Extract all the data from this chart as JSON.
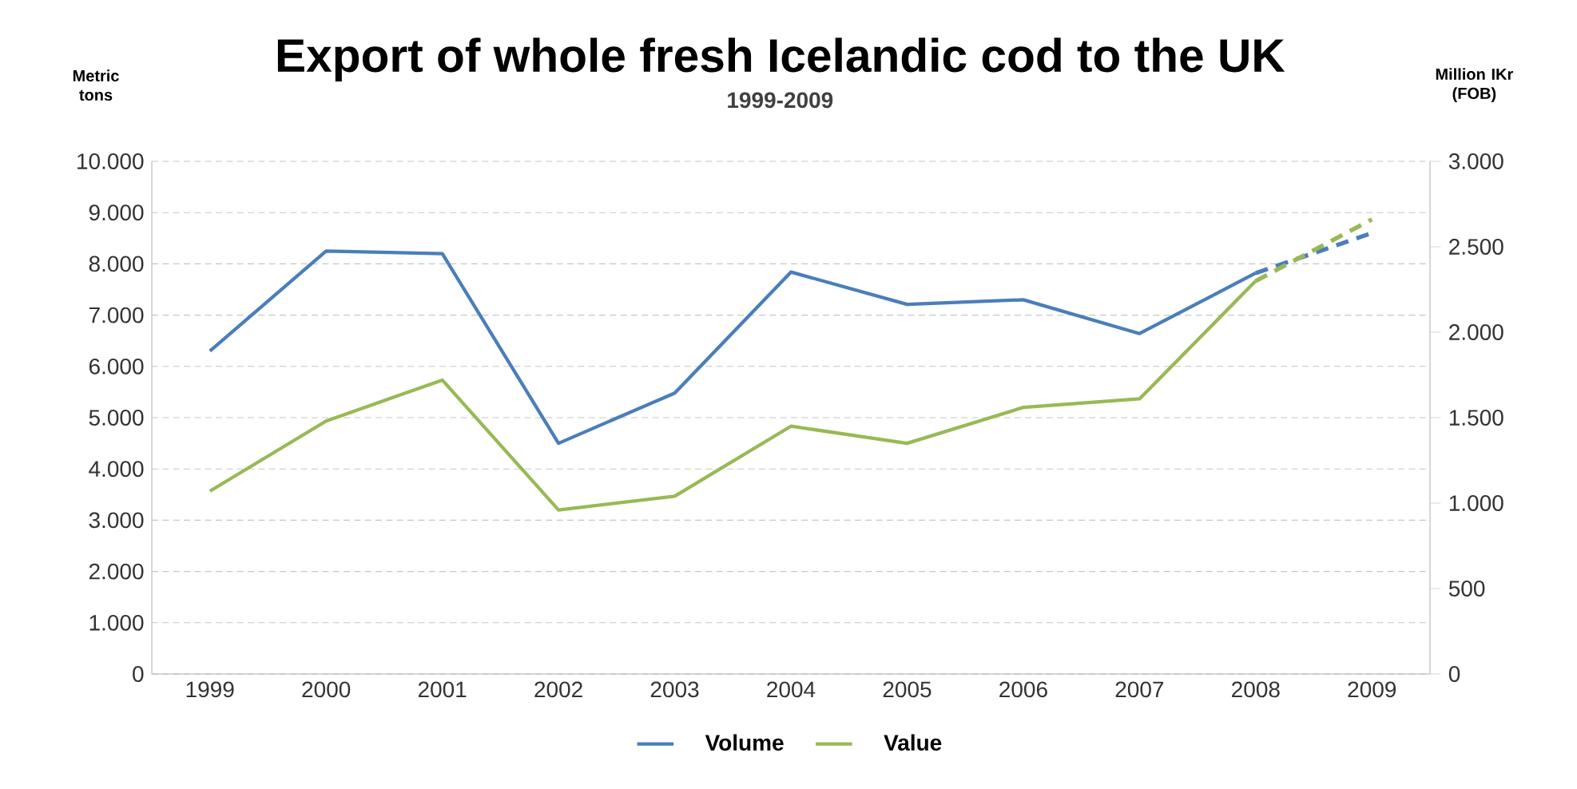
{
  "chart_data": {
    "type": "line",
    "title": "Export of whole fresh Icelandic cod to the UK",
    "subtitle": "1999-2009",
    "ylabel": "Metric tons",
    "y2label": "Million IKr (FOB)",
    "x": [
      1999,
      2000,
      2001,
      2002,
      2003,
      2004,
      2005,
      2006,
      2007,
      2008,
      2009
    ],
    "xlim": [
      1998.5,
      2009.5
    ],
    "xticks": [
      1999,
      2000,
      2001,
      2002,
      2003,
      2004,
      2005,
      2006,
      2007,
      2008,
      2009
    ],
    "ylim": [
      0,
      10000
    ],
    "yticks": [
      0,
      {
        "value": 1000,
        "label": "1.000"
      },
      {
        "value": 2000,
        "label": "2.000"
      },
      {
        "value": 3000,
        "label": "3.000"
      },
      {
        "value": 4000,
        "label": "4.000"
      },
      {
        "value": 5000,
        "label": "5.000"
      },
      {
        "value": 6000,
        "label": "6.000"
      },
      {
        "value": 7000,
        "label": "7.000"
      },
      {
        "value": 8000,
        "label": "8.000"
      },
      {
        "value": 9000,
        "label": "9.000"
      },
      {
        "value": 10000,
        "label": "10.000"
      }
    ],
    "y2lim": [
      0,
      3000
    ],
    "y2ticks": [
      0,
      500,
      {
        "value": 1000,
        "label": "1.000"
      },
      {
        "value": 1500,
        "label": "1.500"
      },
      {
        "value": 2000,
        "label": "2.000"
      },
      {
        "value": 2500,
        "label": "2.500"
      },
      {
        "value": 3000,
        "label": "3.000"
      }
    ],
    "grid": "y",
    "legend": "bottom",
    "marker": "none",
    "series": [
      {
        "name": "Volume",
        "color": "#4a7ebb",
        "line_style": "solid",
        "values": [
          6300,
          8250,
          8200,
          4500,
          5480,
          7840,
          7210,
          7300,
          6640,
          7820,
          null
        ]
      },
      {
        "name": "Value",
        "color": "#98b954",
        "axis": "y2",
        "line_style": "solid",
        "values": [
          1070,
          1480,
          1720,
          960,
          1040,
          1450,
          1350,
          1560,
          1610,
          2300,
          null
        ]
      },
      {
        "color": "#4a7ebb",
        "line_style": "dashed",
        "values": [
          null,
          null,
          null,
          null,
          null,
          null,
          null,
          null,
          null,
          7820,
          8600
        ]
      },
      {
        "color": "#98b954",
        "axis": "y2",
        "line_style": "dashed",
        "values": [
          null,
          null,
          null,
          null,
          null,
          null,
          null,
          null,
          null,
          2300,
          2660
        ]
      }
    ]
  }
}
